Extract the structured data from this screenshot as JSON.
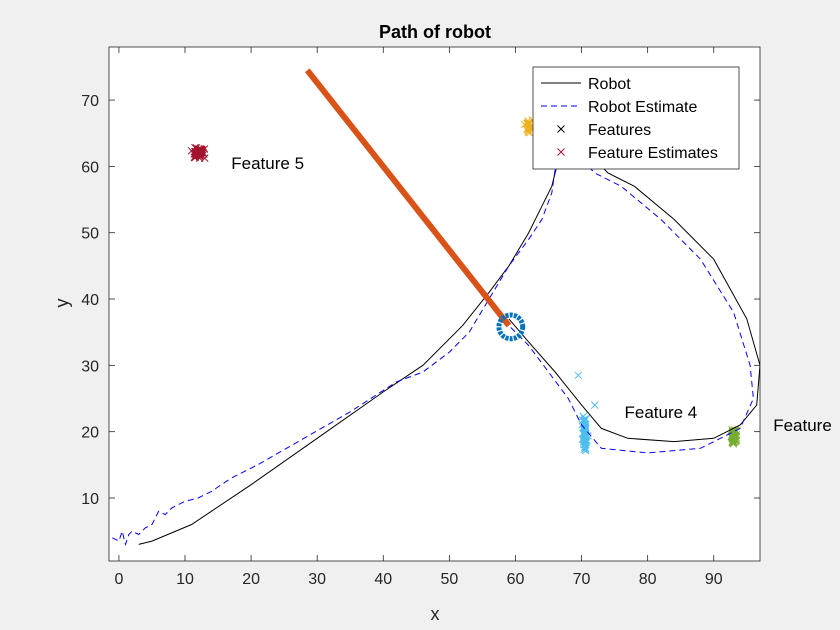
{
  "chart_data": {
    "type": "line",
    "title": "Path of robot",
    "xlabel": "x",
    "ylabel": "y",
    "xlim": [
      -1.5,
      97
    ],
    "ylim": [
      0.5,
      78
    ],
    "xticks": [
      0,
      10,
      20,
      30,
      40,
      50,
      60,
      70,
      80,
      90
    ],
    "yticks": [
      10,
      20,
      30,
      40,
      50,
      60,
      70
    ],
    "grid": false,
    "legend_position": "top-right",
    "legend": [
      {
        "label": "Robot",
        "style": "solid",
        "color": "#000000"
      },
      {
        "label": "Robot Estimate",
        "style": "dashed",
        "color": "#0000ff"
      },
      {
        "label": "Features",
        "style": "x-marker",
        "color": "#000000"
      },
      {
        "label": "Feature Estimates",
        "style": "x-marker",
        "color": "#a2142f"
      }
    ],
    "series": [
      {
        "name": "Robot",
        "color": "#000000",
        "points": [
          [
            3,
            3
          ],
          [
            5,
            3.5
          ],
          [
            11,
            6
          ],
          [
            20,
            12
          ],
          [
            30,
            19
          ],
          [
            40,
            26
          ],
          [
            46,
            30
          ],
          [
            52,
            36
          ],
          [
            56,
            41
          ],
          [
            59,
            45
          ],
          [
            62,
            50
          ],
          [
            64,
            54
          ],
          [
            65.5,
            57
          ],
          [
            66.5,
            61
          ],
          [
            68,
            64
          ],
          [
            71,
            62
          ],
          [
            74,
            59
          ],
          [
            78,
            57
          ],
          [
            84,
            52
          ],
          [
            90,
            46
          ],
          [
            95,
            37
          ],
          [
            97,
            30
          ],
          [
            96.5,
            24
          ],
          [
            94,
            21
          ],
          [
            90,
            19
          ],
          [
            84,
            18.5
          ],
          [
            77,
            19
          ],
          [
            73,
            20.5
          ],
          [
            70,
            24
          ],
          [
            66,
            29
          ],
          [
            62,
            33.5
          ],
          [
            59,
            37
          ]
        ]
      },
      {
        "name": "Robot Estimate",
        "color": "#0000ff",
        "points": [
          [
            -1,
            4
          ],
          [
            0,
            3.5
          ],
          [
            0.5,
            5
          ],
          [
            1,
            3
          ],
          [
            1.5,
            4.5
          ],
          [
            2,
            5
          ],
          [
            3,
            4.5
          ],
          [
            4,
            5.5
          ],
          [
            5,
            6
          ],
          [
            6,
            8
          ],
          [
            7,
            7.5
          ],
          [
            8,
            8.5
          ],
          [
            9,
            9
          ],
          [
            10,
            9.5
          ],
          [
            12,
            10
          ],
          [
            14,
            11
          ],
          [
            17,
            13
          ],
          [
            21,
            15
          ],
          [
            28,
            19
          ],
          [
            35,
            23
          ],
          [
            42,
            27.5
          ],
          [
            46,
            29
          ],
          [
            50,
            32
          ],
          [
            53,
            35
          ],
          [
            56,
            40
          ],
          [
            59,
            45
          ],
          [
            62,
            49
          ],
          [
            64,
            52
          ],
          [
            65.5,
            56
          ],
          [
            66,
            59.5
          ],
          [
            67,
            62.5
          ],
          [
            69,
            62
          ],
          [
            72,
            59
          ],
          [
            76,
            57
          ],
          [
            82,
            52
          ],
          [
            88,
            46
          ],
          [
            93,
            38
          ],
          [
            95.5,
            30
          ],
          [
            96,
            25
          ],
          [
            94,
            20.5
          ],
          [
            88,
            17.5
          ],
          [
            80,
            16.8
          ],
          [
            73,
            17.5
          ],
          [
            70,
            21
          ],
          [
            68,
            25
          ],
          [
            65,
            29
          ],
          [
            62,
            33
          ],
          [
            59,
            36
          ]
        ]
      }
    ],
    "overlays": {
      "orange_line": {
        "from": [
          28.5,
          74.5
        ],
        "to": [
          59,
          36
        ],
        "color": "#d95319"
      },
      "current_position_circle": {
        "center": [
          59.3,
          35.8
        ],
        "radius": 1.8,
        "color": "#0072bd"
      }
    },
    "feature_clusters": [
      {
        "label": "Feature 5",
        "color": "#a2142f",
        "center": [
          12,
          62
        ],
        "spread": [
          1.6,
          1.1
        ],
        "count": 55,
        "label_at": [
          17,
          60.5
        ]
      },
      {
        "label": "Feature 4",
        "color": "#4dbeee",
        "center": [
          70.5,
          19.5
        ],
        "spread": [
          0.5,
          3.5
        ],
        "count": 50,
        "label_at": [
          76.5,
          23
        ]
      },
      {
        "label": "Feature",
        "color": "#77ac30",
        "center": [
          93,
          19.5
        ],
        "spread": [
          0.6,
          1.4
        ],
        "count": 45,
        "label_at": [
          99,
          21
        ]
      },
      {
        "label": "",
        "color": "#edb120",
        "center": [
          62,
          66
        ],
        "spread": [
          0.8,
          1.6
        ],
        "count": 25,
        "label_at": null
      }
    ],
    "outlier_estimates": [
      {
        "at": [
          69.5,
          28.5
        ],
        "color": "#4dbeee"
      },
      {
        "at": [
          72,
          24
        ],
        "color": "#4dbeee"
      }
    ]
  }
}
